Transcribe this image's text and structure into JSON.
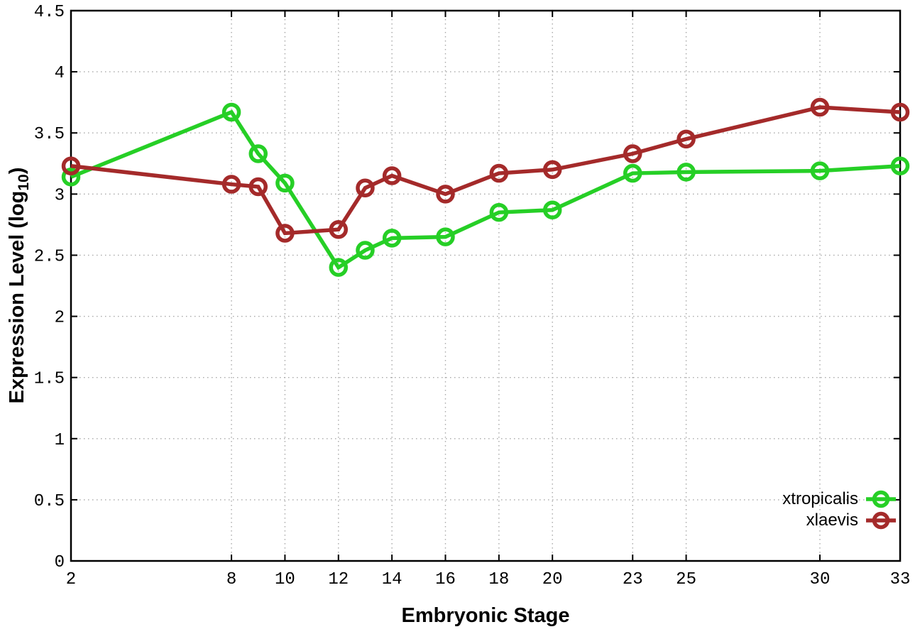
{
  "chart_data": {
    "type": "line",
    "title": "",
    "xlabel": "Embryonic Stage",
    "ylabel": {
      "prefix": "Expression Level (log",
      "subscript": "10",
      "suffix": ")"
    },
    "x": [
      2,
      8,
      9,
      10,
      12,
      13,
      14,
      16,
      18,
      20,
      23,
      25,
      30,
      33
    ],
    "series": [
      {
        "name": "xtropicalis",
        "color": "#26cf26",
        "values": [
          3.14,
          3.67,
          3.33,
          3.09,
          2.4,
          2.54,
          2.64,
          2.65,
          2.85,
          2.87,
          3.17,
          3.18,
          3.19,
          3.23
        ]
      },
      {
        "name": "xlaevis",
        "color": "#a42a2a",
        "values": [
          3.23,
          3.08,
          3.06,
          2.68,
          2.71,
          3.05,
          3.15,
          3.0,
          3.17,
          3.2,
          3.33,
          3.45,
          3.71,
          3.67
        ]
      }
    ],
    "x_tick_values": [
      2,
      8,
      10,
      12,
      14,
      16,
      18,
      20,
      23,
      25,
      30,
      33
    ],
    "x_tick_labels": [
      "2",
      "8",
      "10",
      "12",
      "14",
      "16",
      "18",
      "20",
      "23",
      "25",
      "30",
      "33"
    ],
    "y_tick_values": [
      0,
      0.5,
      1,
      1.5,
      2,
      2.5,
      3,
      3.5,
      4,
      4.5
    ],
    "y_tick_labels": [
      "0",
      "0.5",
      "1",
      "1.5",
      "2",
      "2.5",
      "3",
      "3.5",
      "4",
      "4.5"
    ],
    "xlim": [
      2,
      33
    ],
    "ylim": [
      0,
      4.5
    ],
    "grid": true,
    "legend": {
      "position": "inside-bottom-right",
      "entries": [
        "xtropicalis",
        "xlaevis"
      ]
    },
    "colors": {
      "axis": "#000000",
      "grid": "#a8a8a8",
      "background": "#ffffff"
    }
  }
}
